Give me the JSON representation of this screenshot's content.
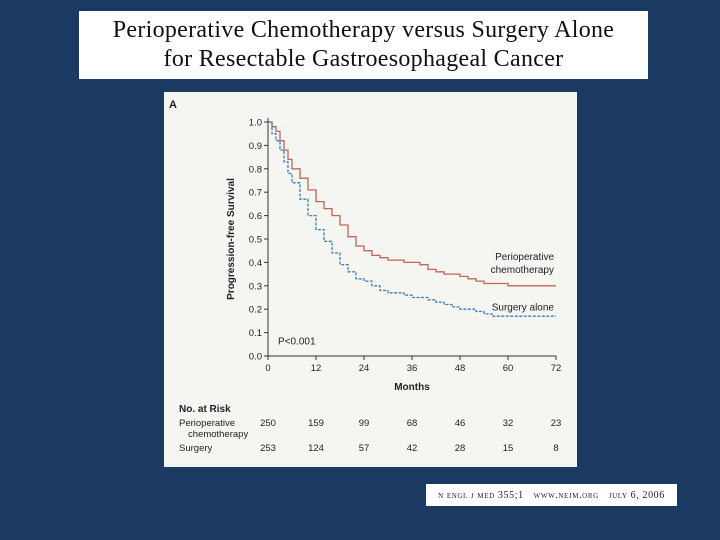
{
  "slide": {
    "title_line1": "Perioperative Chemotherapy versus Surgery Alone",
    "title_line2": "for Resectable Gastroesophageal Cancer",
    "background": "#1b3a62"
  },
  "citation": {
    "journal": "n engl j med 355;1",
    "website": "www.nejm.org",
    "date": "july 6, 2006"
  },
  "chart_data": {
    "type": "line",
    "panel_label": "A",
    "xlabel": "Months",
    "ylabel": "Progression-free Survival",
    "xlim": [
      0,
      72
    ],
    "ylim": [
      0,
      1.0
    ],
    "xticks": [
      0,
      12,
      24,
      36,
      48,
      60,
      72
    ],
    "yticks": [
      "0.0",
      "0.1",
      "0.2",
      "0.3",
      "0.4",
      "0.5",
      "0.6",
      "0.7",
      "0.8",
      "0.9",
      "1.0"
    ],
    "annotation": "P<0.001",
    "series": [
      {
        "name": "Perioperative chemotherapy",
        "label_line1": "Perioperative",
        "label_line2": "chemotherapy",
        "color": "#c0665a",
        "style": "solid",
        "x": [
          0,
          1,
          2,
          3,
          4,
          5,
          6,
          8,
          10,
          12,
          14,
          16,
          18,
          20,
          22,
          24,
          26,
          28,
          30,
          32,
          34,
          36,
          38,
          40,
          42,
          44,
          46,
          48,
          50,
          52,
          54,
          56,
          60,
          66,
          72
        ],
        "y": [
          1.0,
          0.98,
          0.96,
          0.92,
          0.88,
          0.84,
          0.8,
          0.76,
          0.71,
          0.66,
          0.63,
          0.6,
          0.56,
          0.51,
          0.47,
          0.45,
          0.43,
          0.42,
          0.41,
          0.41,
          0.4,
          0.4,
          0.39,
          0.37,
          0.36,
          0.35,
          0.35,
          0.34,
          0.33,
          0.32,
          0.31,
          0.31,
          0.3,
          0.3,
          0.3
        ]
      },
      {
        "name": "Surgery alone",
        "label_line1": "Surgery alone",
        "color": "#3a7fc0",
        "style": "dashed",
        "x": [
          0,
          1,
          2,
          3,
          4,
          5,
          6,
          8,
          10,
          12,
          14,
          16,
          18,
          20,
          22,
          24,
          26,
          28,
          30,
          32,
          34,
          36,
          38,
          40,
          42,
          44,
          46,
          48,
          50,
          52,
          54,
          56,
          60,
          66,
          72
        ],
        "y": [
          1.0,
          0.95,
          0.92,
          0.88,
          0.83,
          0.78,
          0.74,
          0.67,
          0.6,
          0.54,
          0.49,
          0.44,
          0.39,
          0.36,
          0.33,
          0.32,
          0.3,
          0.28,
          0.27,
          0.27,
          0.26,
          0.25,
          0.25,
          0.24,
          0.23,
          0.22,
          0.21,
          0.2,
          0.2,
          0.19,
          0.18,
          0.17,
          0.17,
          0.17,
          0.17
        ]
      }
    ],
    "risk_table": {
      "header": "No. at Risk",
      "rows": [
        {
          "label_line1": "Perioperative",
          "label_line2": "chemotherapy",
          "values": [
            "250",
            "159",
            "99",
            "68",
            "46",
            "32",
            "23"
          ]
        },
        {
          "label_line1": "Surgery",
          "values": [
            "253",
            "124",
            "57",
            "42",
            "28",
            "15",
            "8"
          ]
        }
      ]
    }
  }
}
